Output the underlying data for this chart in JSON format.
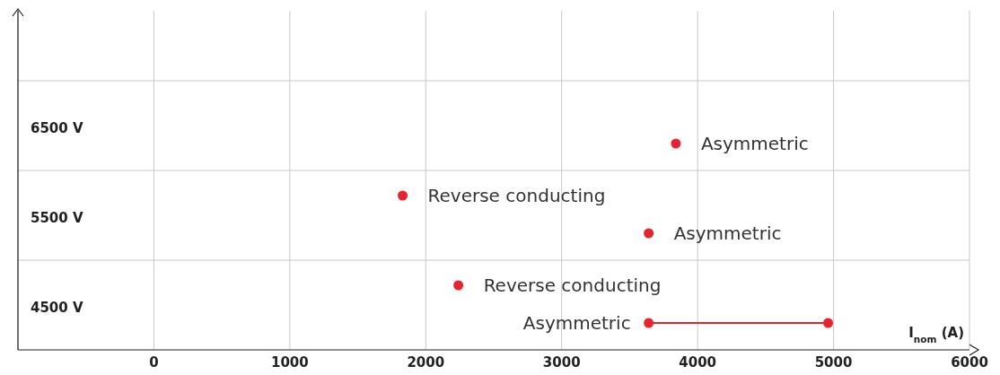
{
  "chart_data": {
    "type": "scatter",
    "orientation": "horizontal",
    "xlabel": "I$_{nom}$ (A)",
    "xlim": [
      -1000,
      6000
    ],
    "xticks": [
      0,
      1000,
      2000,
      3000,
      4000,
      5000,
      6000
    ],
    "categories": [
      "6500 V",
      "5500 V",
      "4500 V"
    ],
    "grid": true,
    "marker": "circle",
    "series": [
      {
        "type": "bar",
        "color": "#e8232f",
        "base": [
          null,
          null,
          3640
        ],
        "values": [
          null,
          null,
          1320
        ]
      },
      {
        "color": "#e8232f",
        "values": [
          null,
          null,
          4960
        ]
      },
      {
        "name": "Asymmetric",
        "color": "#e8232f",
        "values": [
          3840,
          3640,
          3640
        ]
      },
      {
        "name": "Reverse conducting",
        "color": "#e8232f",
        "values": [
          null,
          1830,
          2240
        ]
      }
    ]
  }
}
